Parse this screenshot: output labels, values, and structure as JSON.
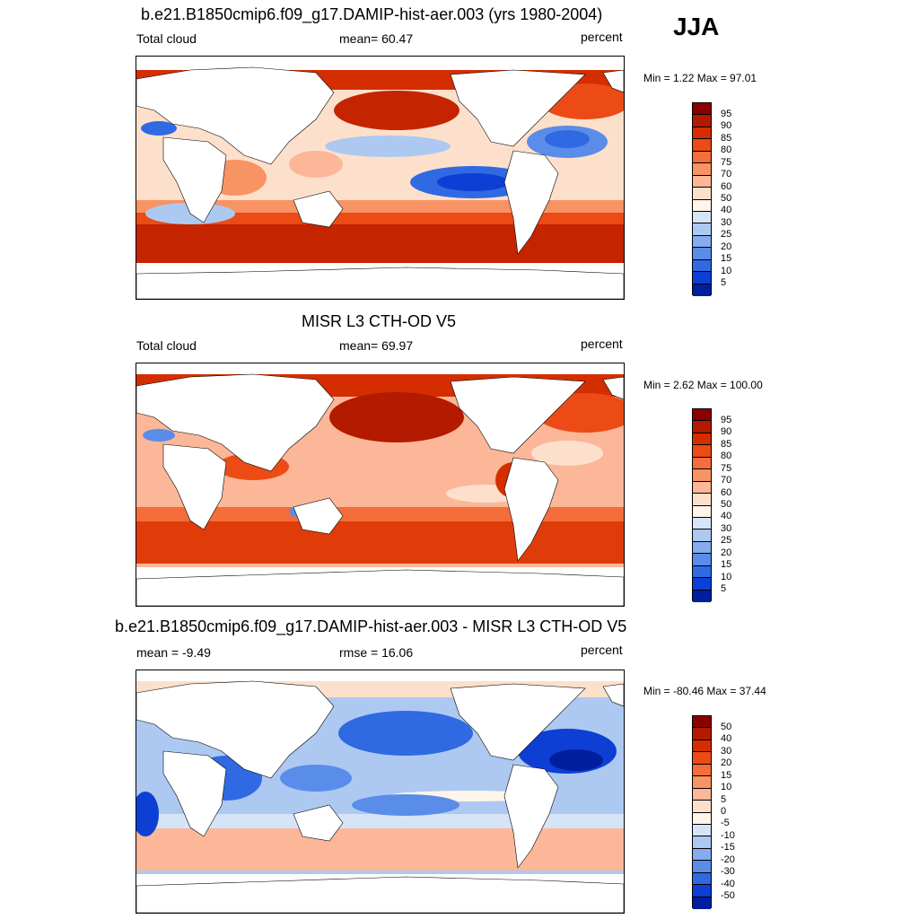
{
  "season": "JJA",
  "panels": [
    {
      "title": "b.e21.B1850cmip6.f09_g17.DAMIP-hist-aer.003 (yrs 1980-2004)",
      "left_label": "Total cloud",
      "center_label": "mean=  60.47",
      "right_label": "percent",
      "minmax": "Min =   1.22 Max =  97.01",
      "colorbar_labels": [
        "95",
        "90",
        "85",
        "80",
        "75",
        "70",
        "60",
        "50",
        "40",
        "30",
        "25",
        "20",
        "15",
        "10",
        "5"
      ],
      "colorbar_colors": [
        "#8b0000",
        "#b31a00",
        "#d42e00",
        "#ec4b16",
        "#f46d3a",
        "#f89364",
        "#fbb797",
        "#fde0cc",
        "#fff5eb",
        "#d6e4f7",
        "#adc9f2",
        "#85acee",
        "#5a8ce9",
        "#2f6ae3",
        "#0d3fd4",
        "#001f9e"
      ]
    },
    {
      "title": "MISR L3 CTH-OD V5",
      "left_label": "Total cloud",
      "center_label": "mean=  69.97",
      "right_label": "percent",
      "minmax": "Min =   2.62 Max = 100.00",
      "colorbar_labels": [
        "95",
        "90",
        "85",
        "80",
        "75",
        "70",
        "60",
        "50",
        "40",
        "30",
        "25",
        "20",
        "15",
        "10",
        "5"
      ],
      "colorbar_colors": [
        "#8b0000",
        "#b31a00",
        "#d42e00",
        "#ec4b16",
        "#f46d3a",
        "#f89364",
        "#fbb797",
        "#fde0cc",
        "#fff5eb",
        "#d6e4f7",
        "#adc9f2",
        "#85acee",
        "#5a8ce9",
        "#2f6ae3",
        "#0d3fd4",
        "#001f9e"
      ]
    },
    {
      "title": "b.e21.B1850cmip6.f09_g17.DAMIP-hist-aer.003 - MISR L3 CTH-OD V5",
      "left_label": "mean =  -9.49",
      "center_label": "rmse =  16.06",
      "right_label": "percent",
      "minmax": "Min = -80.46 Max =  37.44",
      "colorbar_labels": [
        "50",
        "40",
        "30",
        "20",
        "15",
        "10",
        "5",
        "0",
        "-5",
        "-10",
        "-15",
        "-20",
        "-30",
        "-40",
        "-50"
      ],
      "colorbar_colors": [
        "#8b0000",
        "#b31a00",
        "#d42e00",
        "#ec4b16",
        "#f46d3a",
        "#f89364",
        "#fbb797",
        "#fde0cc",
        "#fff5eb",
        "#d6e4f7",
        "#adc9f2",
        "#85acee",
        "#5a8ce9",
        "#2f6ae3",
        "#0d3fd4",
        "#001f9e"
      ]
    }
  ]
}
